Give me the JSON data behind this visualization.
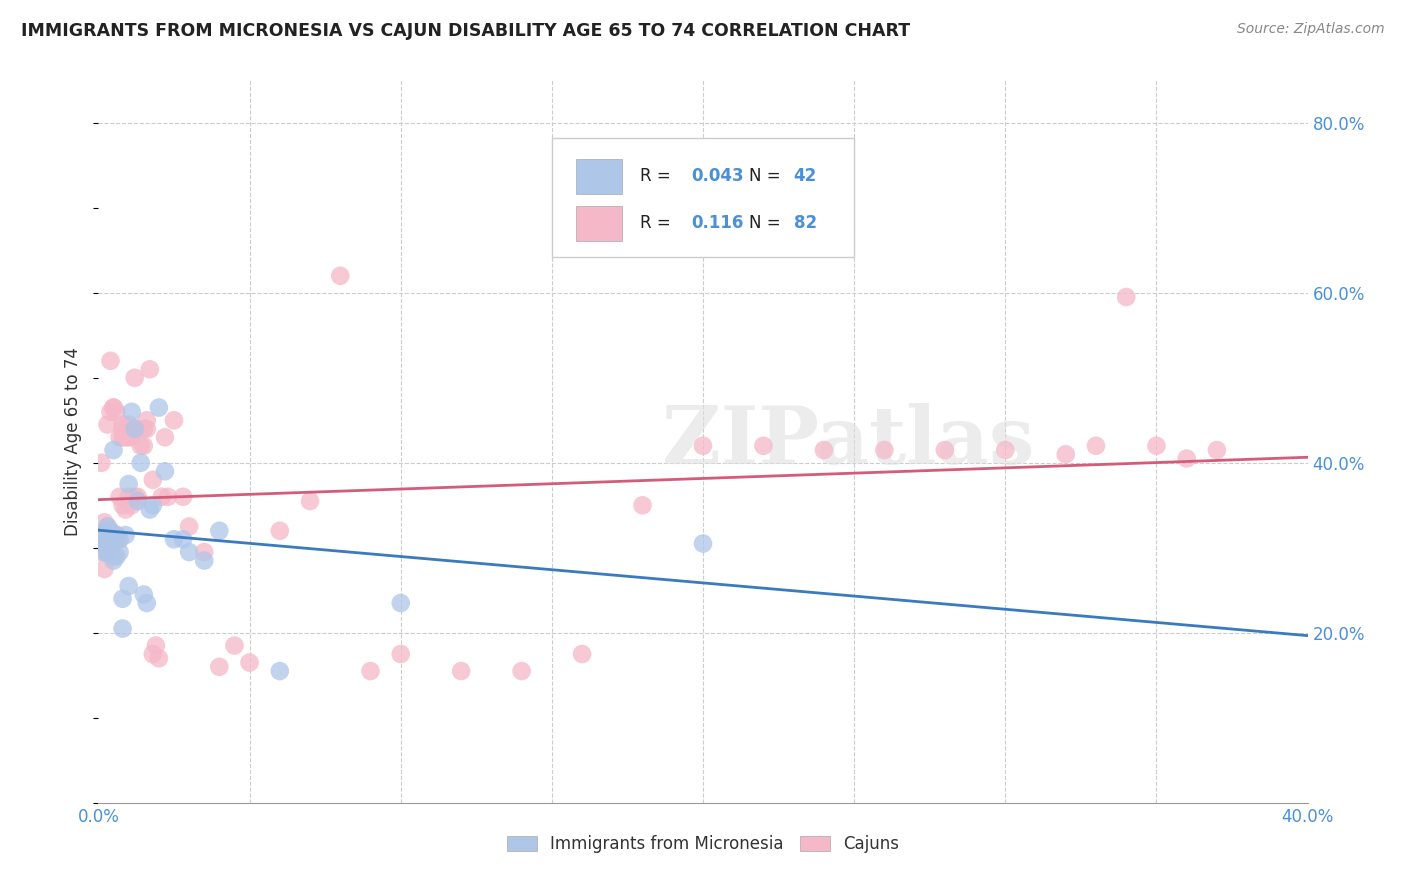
{
  "title": "IMMIGRANTS FROM MICRONESIA VS CAJUN DISABILITY AGE 65 TO 74 CORRELATION CHART",
  "source": "Source: ZipAtlas.com",
  "ylabel": "Disability Age 65 to 74",
  "xlim": [
    0.0,
    0.4
  ],
  "ylim": [
    0.0,
    0.85
  ],
  "x_ticks": [
    0.0,
    0.05,
    0.1,
    0.15,
    0.2,
    0.25,
    0.3,
    0.35,
    0.4
  ],
  "x_tick_labels": [
    "0.0%",
    "",
    "",
    "",
    "",
    "",
    "",
    "",
    "40.0%"
  ],
  "y_ticks_right": [
    0.0,
    0.2,
    0.4,
    0.6,
    0.8
  ],
  "y_tick_labels_right": [
    "",
    "20.0%",
    "40.0%",
    "60.0%",
    "80.0%"
  ],
  "watermark": "ZIPatlas",
  "color_blue": "#aec6e8",
  "color_pink": "#f4b8c8",
  "line_blue": "#3a7abf",
  "line_pink": "#d45c7a",
  "blue_scatter_x": [
    0.001,
    0.001,
    0.002,
    0.002,
    0.002,
    0.003,
    0.003,
    0.003,
    0.003,
    0.004,
    0.004,
    0.004,
    0.005,
    0.005,
    0.005,
    0.006,
    0.006,
    0.007,
    0.007,
    0.008,
    0.008,
    0.009,
    0.01,
    0.01,
    0.011,
    0.012,
    0.013,
    0.014,
    0.015,
    0.016,
    0.017,
    0.018,
    0.02,
    0.022,
    0.025,
    0.028,
    0.03,
    0.035,
    0.04,
    0.06,
    0.1,
    0.2
  ],
  "blue_scatter_y": [
    0.305,
    0.315,
    0.295,
    0.31,
    0.32,
    0.295,
    0.305,
    0.315,
    0.325,
    0.3,
    0.31,
    0.32,
    0.415,
    0.285,
    0.31,
    0.29,
    0.315,
    0.295,
    0.31,
    0.205,
    0.24,
    0.315,
    0.255,
    0.375,
    0.46,
    0.44,
    0.355,
    0.4,
    0.245,
    0.235,
    0.345,
    0.35,
    0.465,
    0.39,
    0.31,
    0.31,
    0.295,
    0.285,
    0.32,
    0.155,
    0.235,
    0.305
  ],
  "pink_scatter_x": [
    0.001,
    0.001,
    0.001,
    0.002,
    0.002,
    0.002,
    0.003,
    0.003,
    0.003,
    0.003,
    0.004,
    0.004,
    0.004,
    0.004,
    0.005,
    0.005,
    0.005,
    0.005,
    0.006,
    0.006,
    0.006,
    0.007,
    0.007,
    0.007,
    0.008,
    0.008,
    0.008,
    0.008,
    0.009,
    0.009,
    0.009,
    0.01,
    0.01,
    0.01,
    0.011,
    0.011,
    0.011,
    0.012,
    0.012,
    0.013,
    0.013,
    0.014,
    0.015,
    0.015,
    0.016,
    0.016,
    0.017,
    0.018,
    0.018,
    0.019,
    0.02,
    0.021,
    0.022,
    0.023,
    0.025,
    0.028,
    0.03,
    0.035,
    0.04,
    0.045,
    0.05,
    0.06,
    0.07,
    0.08,
    0.09,
    0.1,
    0.12,
    0.14,
    0.16,
    0.18,
    0.2,
    0.22,
    0.24,
    0.26,
    0.28,
    0.3,
    0.32,
    0.33,
    0.34,
    0.35,
    0.36,
    0.37
  ],
  "pink_scatter_y": [
    0.295,
    0.31,
    0.4,
    0.275,
    0.31,
    0.33,
    0.295,
    0.315,
    0.325,
    0.445,
    0.31,
    0.315,
    0.46,
    0.52,
    0.29,
    0.31,
    0.465,
    0.465,
    0.31,
    0.315,
    0.46,
    0.36,
    0.43,
    0.31,
    0.445,
    0.43,
    0.35,
    0.44,
    0.345,
    0.435,
    0.43,
    0.36,
    0.43,
    0.445,
    0.43,
    0.435,
    0.35,
    0.5,
    0.36,
    0.44,
    0.36,
    0.42,
    0.42,
    0.44,
    0.44,
    0.45,
    0.51,
    0.175,
    0.38,
    0.185,
    0.17,
    0.36,
    0.43,
    0.36,
    0.45,
    0.36,
    0.325,
    0.295,
    0.16,
    0.185,
    0.165,
    0.32,
    0.355,
    0.62,
    0.155,
    0.175,
    0.155,
    0.155,
    0.175,
    0.35,
    0.42,
    0.42,
    0.415,
    0.415,
    0.415,
    0.415,
    0.41,
    0.42,
    0.595,
    0.42,
    0.405,
    0.415
  ]
}
